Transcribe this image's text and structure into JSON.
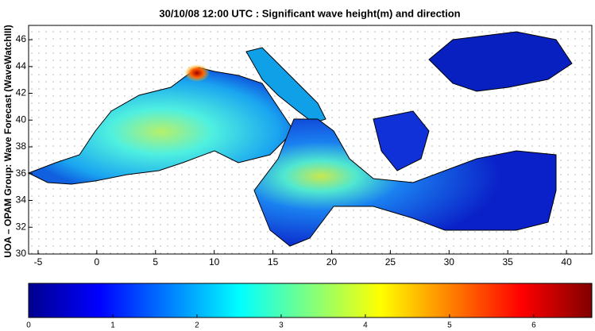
{
  "title": "30/10/08 12:00 UTC : Significant wave height(m) and direction",
  "ylabel": "UOA – OPAM Group: Wave Forecast  (WaveWatchIII)",
  "map": {
    "xlim": [
      -5.81,
      42.16
    ],
    "ylim": [
      30,
      47.07
    ],
    "xticks": [
      -5,
      0,
      5,
      10,
      15,
      20,
      25,
      30,
      35,
      40
    ],
    "yticks": [
      30,
      32,
      34,
      36,
      38,
      40,
      42,
      44,
      46
    ]
  },
  "colorbar": {
    "lim": [
      0,
      6.69
    ],
    "ticks": [
      0,
      1,
      2,
      3,
      4,
      5,
      6
    ]
  }
}
